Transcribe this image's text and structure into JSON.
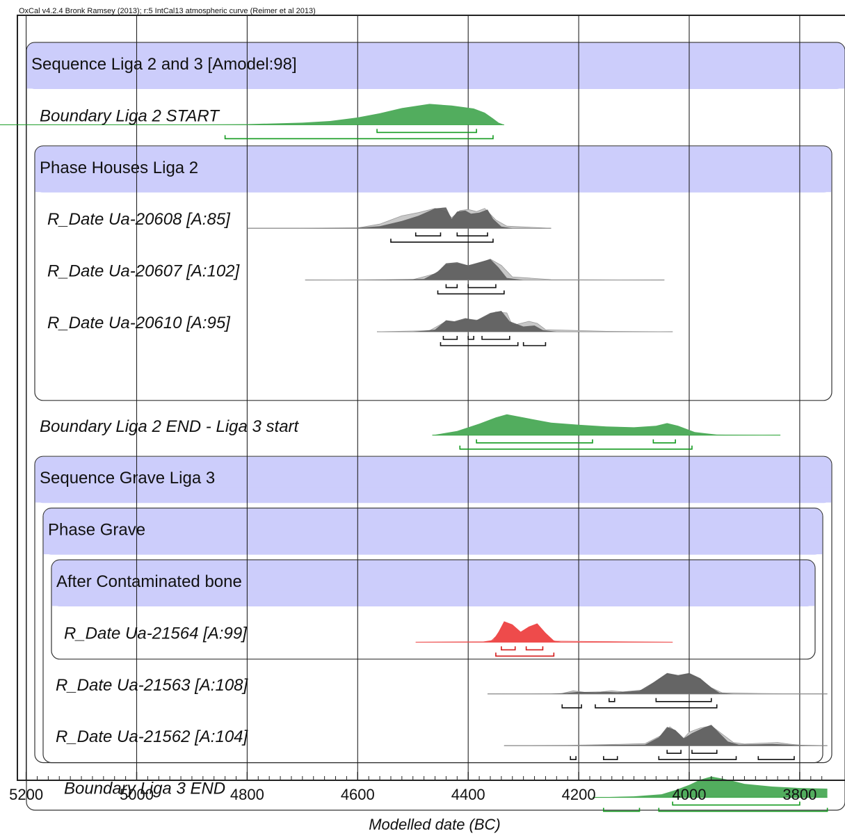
{
  "chart_data": {
    "type": "area",
    "credit": "OxCal v4.2.4 Bronk Ramsey (2013); r:5 IntCal13 atmospheric curve (Reimer et al 2013)",
    "xlabel": "Modelled date (BC)",
    "ylabel": "",
    "x_axis": {
      "reversed": true,
      "xlim": [
        5200,
        3750
      ],
      "major_ticks": [
        5200,
        5000,
        4800,
        4600,
        4400,
        4200,
        4000,
        3800
      ],
      "minor_step": 20
    },
    "grid": true,
    "colors": {
      "header_fill": "#cccdfb",
      "boundary": "#52ad5e",
      "boundary_range": "#139a1f",
      "date_posterior": "#5a5a5a",
      "date_prior": "#c8c8c8",
      "date_range": "#111111",
      "outlier": "#ee4b4b",
      "outlier_range": "#d21a1a"
    },
    "groups": [
      {
        "label": "Sequence Liga 2 and 3 [Amodel:98]",
        "rows": [
          0,
          14
        ]
      },
      {
        "label": "Phase Houses Liga 2",
        "rows": [
          2,
          6
        ]
      },
      {
        "label": "Sequence Grave Liga 3",
        "rows": [
          8,
          13
        ]
      },
      {
        "label": "Phase Grave",
        "rows": [
          9,
          13
        ]
      },
      {
        "label": "After Contaminated bone",
        "rows": [
          10,
          11
        ]
      }
    ],
    "entries": [
      {
        "row": 1,
        "kind": "boundary",
        "label": "Boundary Liga 2 START",
        "line": [
          5250,
          4335
        ],
        "posterior": [
          [
            5250,
            0
          ],
          [
            4900,
            0.01
          ],
          [
            4800,
            0.03
          ],
          [
            4700,
            0.1
          ],
          [
            4650,
            0.18
          ],
          [
            4600,
            0.35
          ],
          [
            4560,
            0.55
          ],
          [
            4520,
            0.8
          ],
          [
            4470,
            1
          ],
          [
            4430,
            0.92
          ],
          [
            4390,
            0.78
          ],
          [
            4370,
            0.58
          ],
          [
            4355,
            0.3
          ],
          [
            4345,
            0.1
          ],
          [
            4335,
            0
          ]
        ],
        "ranges_68": [
          [
            4565,
            4385
          ]
        ],
        "ranges_95": [
          [
            4840,
            4355
          ]
        ]
      },
      {
        "row": 3,
        "kind": "date",
        "label": "R_Date Ua-20608 [A:85]",
        "line": [
          4800,
          4250
        ],
        "prior": [
          [
            4800,
            0
          ],
          [
            4600,
            0.02
          ],
          [
            4560,
            0.2
          ],
          [
            4520,
            0.6
          ],
          [
            4490,
            0.75
          ],
          [
            4460,
            0.95
          ],
          [
            4440,
            0.8
          ],
          [
            4430,
            0.5
          ],
          [
            4415,
            0.85
          ],
          [
            4400,
            0.9
          ],
          [
            4385,
            0.8
          ],
          [
            4370,
            0.95
          ],
          [
            4350,
            0.4
          ],
          [
            4330,
            0.1
          ],
          [
            4250,
            0
          ]
        ],
        "posterior": [
          [
            4700,
            0
          ],
          [
            4600,
            0.02
          ],
          [
            4560,
            0.1
          ],
          [
            4520,
            0.35
          ],
          [
            4490,
            0.6
          ],
          [
            4460,
            0.95
          ],
          [
            4440,
            1
          ],
          [
            4430,
            0.45
          ],
          [
            4420,
            0.8
          ],
          [
            4405,
            0.85
          ],
          [
            4395,
            0.7
          ],
          [
            4380,
            0.75
          ],
          [
            4365,
            0.9
          ],
          [
            4355,
            0.45
          ],
          [
            4340,
            0.08
          ],
          [
            4320,
            0
          ]
        ],
        "ranges_68": [
          [
            4495,
            4450
          ],
          [
            4420,
            4365
          ]
        ],
        "ranges_95": [
          [
            4540,
            4355
          ]
        ]
      },
      {
        "row": 4,
        "kind": "date",
        "label": "R_Date Ua-20607 [A:102]",
        "line": [
          4695,
          4045
        ],
        "prior": [
          [
            4695,
            0
          ],
          [
            4500,
            0.02
          ],
          [
            4460,
            0.3
          ],
          [
            4440,
            0.7
          ],
          [
            4420,
            0.75
          ],
          [
            4400,
            0.7
          ],
          [
            4380,
            0.8
          ],
          [
            4360,
            1
          ],
          [
            4340,
            0.7
          ],
          [
            4320,
            0.15
          ],
          [
            4250,
            0.02
          ],
          [
            4045,
            0
          ]
        ],
        "posterior": [
          [
            4600,
            0
          ],
          [
            4480,
            0.05
          ],
          [
            4455,
            0.4
          ],
          [
            4440,
            0.8
          ],
          [
            4420,
            0.85
          ],
          [
            4400,
            0.7
          ],
          [
            4380,
            0.85
          ],
          [
            4360,
            1
          ],
          [
            4345,
            0.6
          ],
          [
            4330,
            0.1
          ],
          [
            4300,
            0
          ]
        ],
        "ranges_68": [
          [
            4440,
            4420
          ],
          [
            4400,
            4350
          ]
        ],
        "ranges_95": [
          [
            4455,
            4335
          ]
        ]
      },
      {
        "row": 5,
        "kind": "date",
        "label": "R_Date Ua-20610 [A:95]",
        "line": [
          4565,
          4030
        ],
        "prior": [
          [
            4565,
            0
          ],
          [
            4470,
            0.05
          ],
          [
            4440,
            0.5
          ],
          [
            4420,
            0.45
          ],
          [
            4400,
            0.6
          ],
          [
            4380,
            0.55
          ],
          [
            4350,
            0.95
          ],
          [
            4330,
            0.9
          ],
          [
            4320,
            0.3
          ],
          [
            4290,
            0.5
          ],
          [
            4275,
            0.4
          ],
          [
            4260,
            0.1
          ],
          [
            4150,
            0.02
          ],
          [
            4030,
            0
          ]
        ],
        "posterior": [
          [
            4500,
            0
          ],
          [
            4460,
            0.1
          ],
          [
            4440,
            0.55
          ],
          [
            4425,
            0.5
          ],
          [
            4405,
            0.65
          ],
          [
            4385,
            0.55
          ],
          [
            4360,
            0.9
          ],
          [
            4340,
            1
          ],
          [
            4325,
            0.5
          ],
          [
            4300,
            0.25
          ],
          [
            4280,
            0.3
          ],
          [
            4265,
            0.08
          ],
          [
            4240,
            0
          ]
        ],
        "ranges_68": [
          [
            4445,
            4420
          ],
          [
            4400,
            4390
          ],
          [
            4375,
            4325
          ]
        ],
        "ranges_95": [
          [
            4450,
            4310
          ],
          [
            4300,
            4260
          ]
        ]
      },
      {
        "row": 7,
        "kind": "boundary",
        "label": "Boundary Liga 2 END - Liga 3 start",
        "line": [
          4465,
          3835
        ],
        "posterior": [
          [
            4465,
            0
          ],
          [
            4420,
            0.2
          ],
          [
            4380,
            0.55
          ],
          [
            4350,
            0.85
          ],
          [
            4330,
            1
          ],
          [
            4300,
            0.85
          ],
          [
            4250,
            0.6
          ],
          [
            4200,
            0.5
          ],
          [
            4150,
            0.42
          ],
          [
            4100,
            0.38
          ],
          [
            4060,
            0.45
          ],
          [
            4040,
            0.58
          ],
          [
            4020,
            0.45
          ],
          [
            3990,
            0.15
          ],
          [
            3950,
            0.03
          ],
          [
            3835,
            0
          ]
        ],
        "ranges_68": [
          [
            4385,
            4175
          ],
          [
            4065,
            4025
          ]
        ],
        "ranges_95": [
          [
            4415,
            3995
          ]
        ]
      },
      {
        "row": 11,
        "kind": "outlier",
        "label": "R_Date Ua-21564 [A:99]",
        "line": [
          4495,
          4030
        ],
        "prior": [
          [
            4495,
            0
          ],
          [
            4360,
            0.02
          ],
          [
            4345,
            0.4
          ],
          [
            4335,
            0.95
          ],
          [
            4320,
            0.8
          ],
          [
            4305,
            0.45
          ],
          [
            4290,
            0.7
          ],
          [
            4275,
            0.85
          ],
          [
            4260,
            0.4
          ],
          [
            4245,
            0.05
          ],
          [
            4030,
            0
          ]
        ],
        "posterior": [
          [
            4380,
            0
          ],
          [
            4355,
            0.1
          ],
          [
            4345,
            0.5
          ],
          [
            4335,
            1
          ],
          [
            4320,
            0.85
          ],
          [
            4305,
            0.5
          ],
          [
            4290,
            0.75
          ],
          [
            4275,
            0.9
          ],
          [
            4260,
            0.45
          ],
          [
            4245,
            0.08
          ],
          [
            4230,
            0
          ]
        ],
        "ranges_68": [
          [
            4340,
            4315
          ],
          [
            4295,
            4265
          ]
        ],
        "ranges_95": [
          [
            4350,
            4245
          ]
        ]
      },
      {
        "row": 12,
        "kind": "date",
        "label": "R_Date Ua-21563 [A:108]",
        "line": [
          4365,
          3750
        ],
        "prior": [
          [
            4365,
            0
          ],
          [
            4230,
            0.02
          ],
          [
            4210,
            0.15
          ],
          [
            4190,
            0.08
          ],
          [
            4160,
            0.1
          ],
          [
            4140,
            0.15
          ],
          [
            4120,
            0.1
          ],
          [
            4080,
            0.2
          ],
          [
            4060,
            0.6
          ],
          [
            4040,
            0.95
          ],
          [
            4020,
            0.85
          ],
          [
            4000,
            0.95
          ],
          [
            3980,
            0.7
          ],
          [
            3960,
            0.3
          ],
          [
            3940,
            0.05
          ],
          [
            3870,
            0.02
          ],
          [
            3750,
            0
          ]
        ],
        "posterior": [
          [
            4250,
            0
          ],
          [
            4220,
            0.05
          ],
          [
            4200,
            0.1
          ],
          [
            4170,
            0.08
          ],
          [
            4150,
            0.1
          ],
          [
            4130,
            0.08
          ],
          [
            4090,
            0.15
          ],
          [
            4065,
            0.55
          ],
          [
            4040,
            1
          ],
          [
            4020,
            0.9
          ],
          [
            4000,
            1
          ],
          [
            3980,
            0.75
          ],
          [
            3960,
            0.3
          ],
          [
            3945,
            0.05
          ],
          [
            3920,
            0
          ]
        ],
        "ranges_68": [
          [
            4145,
            4135
          ],
          [
            4060,
            3960
          ]
        ],
        "ranges_95": [
          [
            4230,
            4195
          ],
          [
            4170,
            3950
          ]
        ]
      },
      {
        "row": 13,
        "kind": "date",
        "label": "R_Date Ua-21562 [A:104]",
        "line": [
          4335,
          3750
        ],
        "prior": [
          [
            4335,
            0
          ],
          [
            4220,
            0.02
          ],
          [
            4150,
            0.05
          ],
          [
            4080,
            0.1
          ],
          [
            4050,
            0.5
          ],
          [
            4035,
            0.9
          ],
          [
            4020,
            0.6
          ],
          [
            4010,
            0.35
          ],
          [
            4000,
            0.65
          ],
          [
            3980,
            0.85
          ],
          [
            3960,
            0.95
          ],
          [
            3940,
            0.55
          ],
          [
            3920,
            0.15
          ],
          [
            3900,
            0.08
          ],
          [
            3870,
            0.12
          ],
          [
            3840,
            0.15
          ],
          [
            3820,
            0.08
          ],
          [
            3800,
            0.03
          ],
          [
            3750,
            0
          ]
        ],
        "posterior": [
          [
            4200,
            0
          ],
          [
            4150,
            0.03
          ],
          [
            4080,
            0.05
          ],
          [
            4055,
            0.4
          ],
          [
            4040,
            0.9
          ],
          [
            4025,
            0.75
          ],
          [
            4010,
            0.35
          ],
          [
            3995,
            0.6
          ],
          [
            3975,
            0.85
          ],
          [
            3960,
            1
          ],
          [
            3945,
            0.6
          ],
          [
            3930,
            0.2
          ],
          [
            3910,
            0.05
          ],
          [
            3880,
            0.06
          ],
          [
            3850,
            0.08
          ],
          [
            3820,
            0.05
          ],
          [
            3790,
            0
          ]
        ],
        "ranges_68": [
          [
            4040,
            4015
          ],
          [
            3995,
            3950
          ]
        ],
        "ranges_95": [
          [
            4215,
            4205
          ],
          [
            4155,
            4130
          ],
          [
            4055,
            3915
          ],
          [
            3875,
            3810
          ]
        ]
      },
      {
        "row": 14,
        "kind": "boundary",
        "label": "Boundary Liga 3 END",
        "line": [
          4175,
          3750
        ],
        "posterior": [
          [
            4175,
            0
          ],
          [
            4100,
            0.05
          ],
          [
            4050,
            0.15
          ],
          [
            4025,
            0.35
          ],
          [
            4000,
            0.6
          ],
          [
            3980,
            0.85
          ],
          [
            3960,
            1
          ],
          [
            3930,
            0.85
          ],
          [
            3900,
            0.65
          ],
          [
            3850,
            0.52
          ],
          [
            3800,
            0.45
          ],
          [
            3750,
            0.42
          ]
        ],
        "ranges_68": [
          [
            4030,
            3800
          ]
        ],
        "ranges_95": [
          [
            4155,
            4090
          ],
          [
            4055,
            3750
          ]
        ]
      }
    ]
  }
}
